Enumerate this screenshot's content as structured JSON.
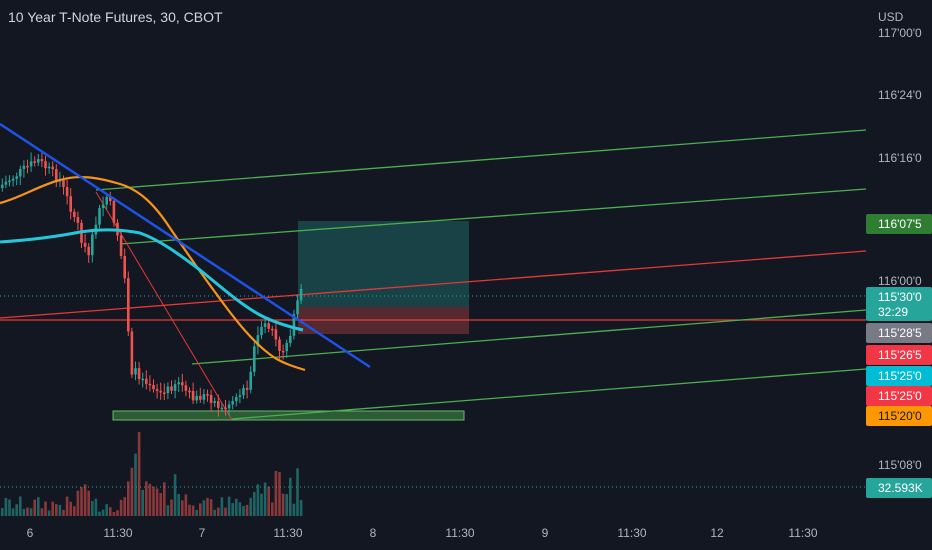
{
  "header": {
    "title": "10 Year T-Note Futures, 30, CBOT"
  },
  "price_axis": {
    "currency": "USD",
    "ticks": [
      "117'00'0",
      "116'24'0",
      "116'16'0",
      "116'00'0",
      "115'08'0"
    ]
  },
  "time_axis": {
    "ticks": [
      "6",
      "11:30",
      "7",
      "11:30",
      "8",
      "11:30",
      "9",
      "11:30",
      "12",
      "11:30"
    ]
  },
  "price_tags": {
    "t1": "116'07'5",
    "t2": "115'30'0",
    "countdown": "32:29",
    "t3": "115'28'5",
    "t4": "115'26'5",
    "t5": "115'25'0",
    "t6": "115'25'0",
    "t7": "115'20'0",
    "volume": "32.593K"
  },
  "colors": {
    "background": "#131722",
    "up": "#26a69a",
    "down": "#ef5350",
    "trend_blue": "#1e53e5",
    "ma_orange": "#f7931a",
    "ma_teal": "#26c6da",
    "channel_green": "#4caf50",
    "channel_red": "#e53935"
  }
}
